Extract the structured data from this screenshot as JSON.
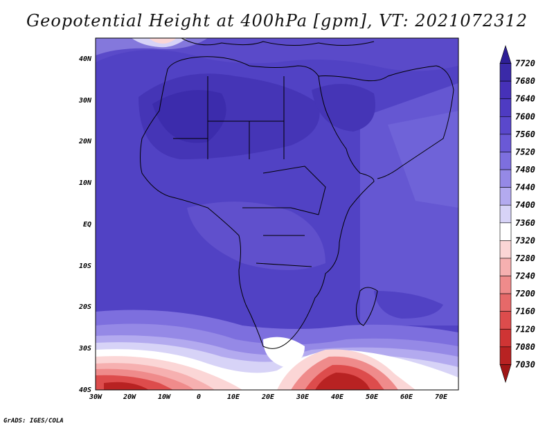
{
  "title": "Geopotential Height at 400hPa [gpm], VT: 2021072312",
  "credit": "GrADS: IGES/COLA",
  "map": {
    "lon_ticks": [
      "30W",
      "20W",
      "10W",
      "0",
      "10E",
      "20E",
      "30E",
      "40E",
      "50E",
      "60E",
      "70E"
    ],
    "lat_ticks": [
      "40N",
      "30N",
      "20N",
      "10N",
      "EQ",
      "10S",
      "20S",
      "30S",
      "40S"
    ],
    "lon_range": [
      -30,
      75
    ],
    "lat_range": [
      -40,
      45
    ],
    "variable": "Geopotential Height",
    "level": "400hPa",
    "units": "gpm",
    "valid_time": "2021072312"
  },
  "colorbar": {
    "levels": [
      "7720",
      "7680",
      "7640",
      "7600",
      "7560",
      "7520",
      "7480",
      "7440",
      "7400",
      "7360",
      "7320",
      "7280",
      "7240",
      "7200",
      "7160",
      "7120",
      "7080",
      "7030"
    ],
    "colors": [
      "#2e1f96",
      "#3a2aa8",
      "#4631b8",
      "#4e3bc2",
      "#5a48cc",
      "#6a59d6",
      "#7d6fde",
      "#9589e6",
      "#b3aaef",
      "#d7d3f7",
      "#ffffff",
      "#fbd6d6",
      "#f6b0b0",
      "#ef8b8b",
      "#e66969",
      "#dd4c4c",
      "#cf3434",
      "#b82222",
      "#a01616"
    ]
  },
  "field_features": [
    {
      "name": "Sahara high",
      "value": "7640"
    },
    {
      "name": "South Atlantic low",
      "value": "7030"
    },
    {
      "name": "Indian Ocean low",
      "value": "7080"
    }
  ]
}
